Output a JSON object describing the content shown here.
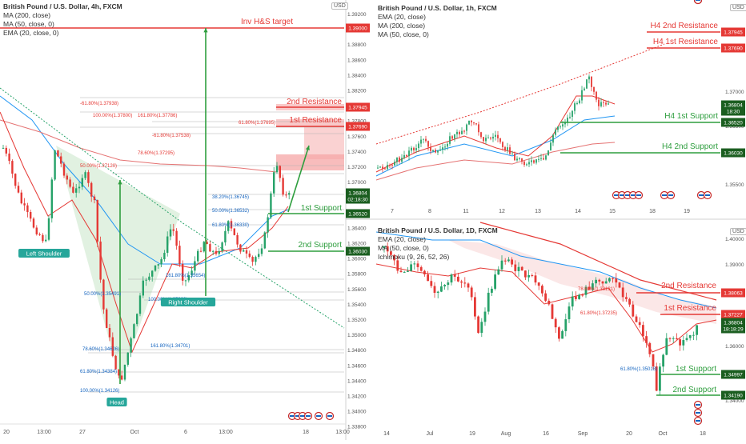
{
  "panels": [
    {
      "id": "main",
      "title": "British Pound / U.S. Dollar, 4h, FXCM",
      "indicators": [
        "MA (200, close)",
        "MA (50, close, 0)",
        "EMA (20, close, 0)"
      ],
      "currency": "USD",
      "x_labels": [
        "20",
        "13:00",
        "27",
        "Oct",
        "6",
        "13:00",
        "18",
        "13:00"
      ],
      "y_ticks": [
        "1.39200",
        "1.39000",
        "1.38800",
        "1.38600",
        "1.38400",
        "1.38200",
        "1.38000",
        "1.37800",
        "1.37600",
        "1.37400",
        "1.37200",
        "1.37000",
        "1.36800",
        "1.36600",
        "1.36400",
        "1.36200",
        "1.36000",
        "1.35800",
        "1.35600",
        "1.35400",
        "1.35200",
        "1.35000",
        "1.34800",
        "1.34600",
        "1.34400",
        "1.34200",
        "1.34000",
        "1.33800"
      ],
      "price_tags": [
        {
          "value": "1.39000",
          "color": "#e53935"
        },
        {
          "value": "1.37945",
          "color": "#e53935"
        },
        {
          "value": "1.37690",
          "color": "#e53935"
        },
        {
          "value": "1.36804",
          "color": "#1b5e20"
        },
        {
          "value": "02:18:30",
          "color": "#1b5e20"
        },
        {
          "value": "1.36520",
          "color": "#1b5e20"
        },
        {
          "value": "1.36030",
          "color": "#1b5e20"
        }
      ],
      "levels": [
        {
          "label": "Inv H&S target",
          "color": "#e53935"
        },
        {
          "label": "2nd Resistance",
          "color": "#e53935"
        },
        {
          "label": "1st Resistance",
          "color": "#e53935"
        },
        {
          "label": "1st Support",
          "color": "#2e9e3e"
        },
        {
          "label": "2nd Support",
          "color": "#2e9e3e"
        }
      ],
      "pattern_labels": [
        "Left Shoulder",
        "Head",
        "Right Shoulder"
      ],
      "fib_labels": [
        "-61.80%(1.37938)",
        "100.00%(1.37800)",
        "161.80%(1.37786)",
        "61.80%(1.37695)",
        "-61.80%(1.37538)",
        "78.60%(1.37295)",
        "50.00%(1.37120)",
        "38.20%(1.36745)",
        "50.00%(1.36532)",
        "61.80%(1.36330)",
        "161.80%(1.35654)",
        "50.00%(1.35491)",
        "100.00%(1.35339)",
        "161.80%(1.34701)",
        "78.60%(1.34626)",
        "61.80%(1.34384)",
        "100.00%(1.34126)"
      ]
    },
    {
      "id": "h1",
      "title": "British Pound / U.S. Dollar, 1h, FXCM",
      "indicators": [
        "EMA (20, close)",
        "MA (200, close)",
        "MA (50, close, 0)"
      ],
      "currency": "USD",
      "x_labels": [
        "7",
        "8",
        "11",
        "12",
        "13",
        "14",
        "15",
        "18",
        "19"
      ],
      "y_ticks": [
        "1.37000",
        "1.36500",
        "1.35500"
      ],
      "price_tags": [
        {
          "value": "1.37945",
          "color": "#e53935"
        },
        {
          "value": "1.37690",
          "color": "#e53935"
        },
        {
          "value": "1.36804",
          "color": "#1b5e20"
        },
        {
          "value": "18:30",
          "color": "#1b5e20"
        },
        {
          "value": "1.36520",
          "color": "#1b5e20"
        },
        {
          "value": "1.36030",
          "color": "#1b5e20"
        }
      ],
      "levels": [
        {
          "label": "H4 2nd Resistance",
          "color": "#e53935"
        },
        {
          "label": "H4 1st Resistance",
          "color": "#e53935"
        },
        {
          "label": "H4 1st Support",
          "color": "#2e9e3e"
        },
        {
          "label": "H4 2nd Support",
          "color": "#2e9e3e"
        }
      ]
    },
    {
      "id": "d1",
      "title": "British Pound / U.S. Dollar, 1D, FXCM",
      "indicators": [
        "EMA (20, close)",
        "MA (50, close, 0)",
        "Ichimoku (9, 26, 52, 26)"
      ],
      "currency": "USD",
      "x_labels": [
        "14",
        "Jul",
        "19",
        "Aug",
        "16",
        "Sep",
        "20",
        "Oct",
        "18"
      ],
      "y_ticks": [
        "1.40000",
        "1.39000",
        "1.38000",
        "1.37000",
        "1.36000",
        "1.35000",
        "1.34000"
      ],
      "price_tags": [
        {
          "value": "1.38063",
          "color": "#e53935"
        },
        {
          "value": "1.37227",
          "color": "#e53935"
        },
        {
          "value": "1.36804",
          "color": "#1b5e20"
        },
        {
          "value": "18:18:29",
          "color": "#1b5e20"
        },
        {
          "value": "1.34997",
          "color": "#1b5e20"
        },
        {
          "value": "1.34190",
          "color": "#1b5e20"
        }
      ],
      "levels": [
        {
          "label": "2nd Resistance",
          "color": "#e53935"
        },
        {
          "label": "1st Resistance",
          "color": "#e53935"
        },
        {
          "label": "1st Support",
          "color": "#2e9e3e"
        },
        {
          "label": "2nd Support",
          "color": "#2e9e3e"
        }
      ],
      "fib_labels": [
        "78.60%(1.38131)",
        "61.80%(1.37235)",
        "61.80%(1.35018)"
      ]
    }
  ],
  "chart_data": [
    {
      "type": "candlestick",
      "title": "British Pound / U.S. Dollar, 4h, FXCM",
      "ylim": [
        1.338,
        1.392
      ],
      "levels": {
        "Inv H&S target": 1.39,
        "2nd Resistance": 1.37945,
        "1st Resistance": 1.3769,
        "1st Support": 1.3652,
        "2nd Support": 1.3603
      },
      "last_price": 1.36804
    },
    {
      "type": "candlestick",
      "title": "British Pound / U.S. Dollar, 1h, FXCM",
      "levels": {
        "H4 2nd Resistance": 1.37945,
        "H4 1st Resistance": 1.3769,
        "H4 1st Support": 1.3652,
        "H4 2nd Support": 1.3603
      },
      "last_price": 1.36804
    },
    {
      "type": "candlestick",
      "title": "British Pound / U.S. Dollar, 1D, FXCM",
      "ylim": [
        1.338,
        1.404
      ],
      "levels": {
        "2nd Resistance": 1.38063,
        "1st Resistance": 1.37227,
        "1st Support": 1.34997,
        "2nd Support": 1.3419
      },
      "last_price": 1.36804
    }
  ],
  "colors": {
    "bull": "#26a269",
    "bear": "#e53935",
    "level_red": "#e53935",
    "level_green": "#2e9e3e",
    "ema": "#e53935",
    "ma50": "#2196f3",
    "ma200": "#e57373"
  }
}
